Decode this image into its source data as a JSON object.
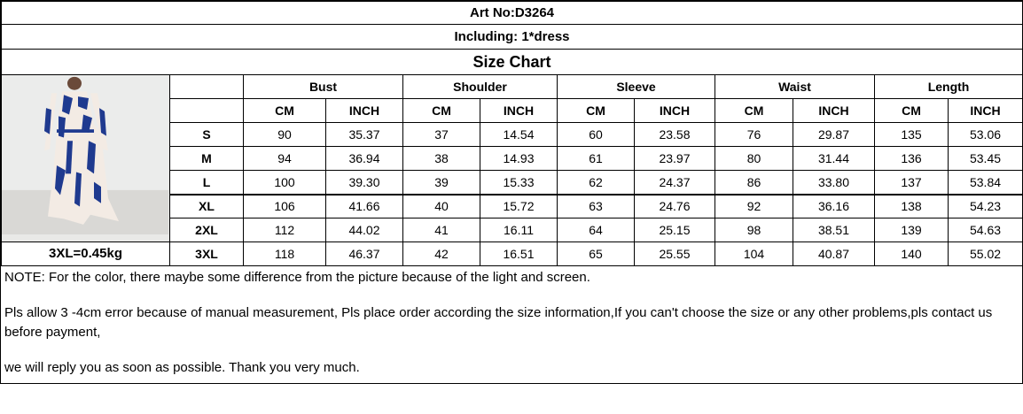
{
  "art_no": "Art No:D3264",
  "including": "Including:  1*dress",
  "title": "Size Chart",
  "weight_note": "3XL=0.45kg",
  "image_alt": "model wearing blue and white printed dress",
  "measurements": [
    "Bust",
    "Shoulder",
    "Sleeve",
    "Waist",
    "Length"
  ],
  "units": [
    "CM",
    "INCH"
  ],
  "rows": [
    {
      "size": "S",
      "values": [
        "90",
        "35.37",
        "37",
        "14.54",
        "60",
        "23.58",
        "76",
        "29.87",
        "135",
        "53.06"
      ]
    },
    {
      "size": "M",
      "values": [
        "94",
        "36.94",
        "38",
        "14.93",
        "61",
        "23.97",
        "80",
        "31.44",
        "136",
        "53.45"
      ]
    },
    {
      "size": "L",
      "values": [
        "100",
        "39.30",
        "39",
        "15.33",
        "62",
        "24.37",
        "86",
        "33.80",
        "137",
        "53.84"
      ]
    },
    {
      "size": "XL",
      "values": [
        "106",
        "41.66",
        "40",
        "15.72",
        "63",
        "24.76",
        "92",
        "36.16",
        "138",
        "54.23"
      ]
    },
    {
      "size": "2XL",
      "values": [
        "112",
        "44.02",
        "41",
        "16.11",
        "64",
        "25.15",
        "98",
        "38.51",
        "139",
        "54.63"
      ]
    },
    {
      "size": "3XL",
      "values": [
        "118",
        "46.37",
        "42",
        "16.51",
        "65",
        "25.55",
        "104",
        "40.87",
        "140",
        "55.02"
      ]
    }
  ],
  "notes": [
    "NOTE:  For the color, there maybe some difference from the picture because of the light and screen.",
    "Pls allow 3 -4cm error because of manual measurement, Pls place order according the size information,If you can't choose the size or any other problems,pls contact us before payment,",
    "we will reply you as soon as possible. Thank you very much."
  ]
}
